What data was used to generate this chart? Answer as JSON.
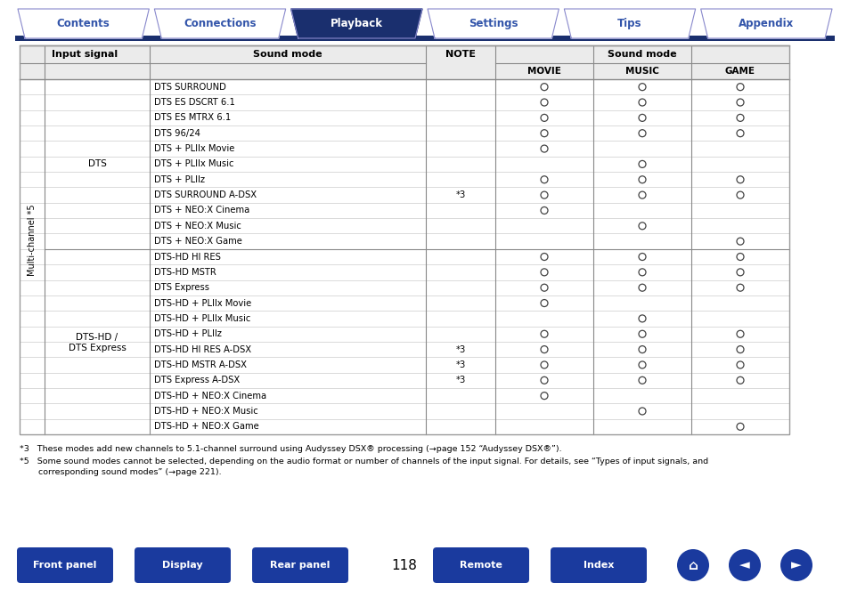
{
  "nav_tabs": [
    "Contents",
    "Connections",
    "Playback",
    "Settings",
    "Tips",
    "Appendix"
  ],
  "nav_active": 2,
  "nav_bg_active": "#1a2f6e",
  "nav_bg_inactive": "#ffffff",
  "nav_text_active": "#ffffff",
  "nav_text_inactive": "#3355aa",
  "nav_border": "#8888cc",
  "rows": [
    {
      "sound_mode": "DTS SURROUND",
      "note": "",
      "movie": 1,
      "music": 1,
      "game": 1
    },
    {
      "sound_mode": "DTS ES DSCRT 6.1",
      "note": "",
      "movie": 1,
      "music": 1,
      "game": 1
    },
    {
      "sound_mode": "DTS ES MTRX 6.1",
      "note": "",
      "movie": 1,
      "music": 1,
      "game": 1
    },
    {
      "sound_mode": "DTS 96/24",
      "note": "",
      "movie": 1,
      "music": 1,
      "game": 1
    },
    {
      "sound_mode": "DTS + PLIIx Movie",
      "note": "",
      "movie": 1,
      "music": 0,
      "game": 0
    },
    {
      "sound_mode": "DTS + PLIIx Music",
      "note": "",
      "movie": 0,
      "music": 1,
      "game": 0
    },
    {
      "sound_mode": "DTS + PLIIz",
      "note": "",
      "movie": 1,
      "music": 1,
      "game": 1
    },
    {
      "sound_mode": "DTS SURROUND A-DSX",
      "note": "*3",
      "movie": 1,
      "music": 1,
      "game": 1
    },
    {
      "sound_mode": "DTS + NEO:X Cinema",
      "note": "",
      "movie": 1,
      "music": 0,
      "game": 0
    },
    {
      "sound_mode": "DTS + NEO:X Music",
      "note": "",
      "movie": 0,
      "music": 1,
      "game": 0
    },
    {
      "sound_mode": "DTS + NEO:X Game",
      "note": "",
      "movie": 0,
      "music": 0,
      "game": 1
    },
    {
      "sound_mode": "DTS-HD HI RES",
      "note": "",
      "movie": 1,
      "music": 1,
      "game": 1
    },
    {
      "sound_mode": "DTS-HD MSTR",
      "note": "",
      "movie": 1,
      "music": 1,
      "game": 1
    },
    {
      "sound_mode": "DTS Express",
      "note": "",
      "movie": 1,
      "music": 1,
      "game": 1
    },
    {
      "sound_mode": "DTS-HD + PLIIx Movie",
      "note": "",
      "movie": 1,
      "music": 0,
      "game": 0
    },
    {
      "sound_mode": "DTS-HD + PLIIx Music",
      "note": "",
      "movie": 0,
      "music": 1,
      "game": 0
    },
    {
      "sound_mode": "DTS-HD + PLIIz",
      "note": "",
      "movie": 1,
      "music": 1,
      "game": 1
    },
    {
      "sound_mode": "DTS-HD HI RES A-DSX",
      "note": "*3",
      "movie": 1,
      "music": 1,
      "game": 1
    },
    {
      "sound_mode": "DTS-HD MSTR A-DSX",
      "note": "*3",
      "movie": 1,
      "music": 1,
      "game": 1
    },
    {
      "sound_mode": "DTS Express A-DSX",
      "note": "*3",
      "movie": 1,
      "music": 1,
      "game": 1
    },
    {
      "sound_mode": "DTS-HD + NEO:X Cinema",
      "note": "",
      "movie": 1,
      "music": 0,
      "game": 0
    },
    {
      "sound_mode": "DTS-HD + NEO:X Music",
      "note": "",
      "movie": 0,
      "music": 1,
      "game": 0
    },
    {
      "sound_mode": "DTS-HD + NEO:X Game",
      "note": "",
      "movie": 0,
      "music": 0,
      "game": 1
    }
  ],
  "footnote1": "*3   These modes add new channels to 5.1-channel surround using Audyssey DSX® processing (→page 152 “Audyssey DSX®”).",
  "footnote2_line1": "*5   Some sound modes cannot be selected, depending on the audio format or number of channels of the input signal. For details, see “Types of input signals, and",
  "footnote2_line2": "       corresponding sound modes” (→page 221).",
  "page_num": "118",
  "bottom_buttons": [
    "Front panel",
    "Display",
    "Rear panel",
    "Remote",
    "Index"
  ],
  "button_color": "#1a3a9e",
  "vertical_label": "Multi-channel *5",
  "dts_label": "DTS",
  "dtshd_label1": "DTS-HD /",
  "dtshd_label2": "DTS Express"
}
